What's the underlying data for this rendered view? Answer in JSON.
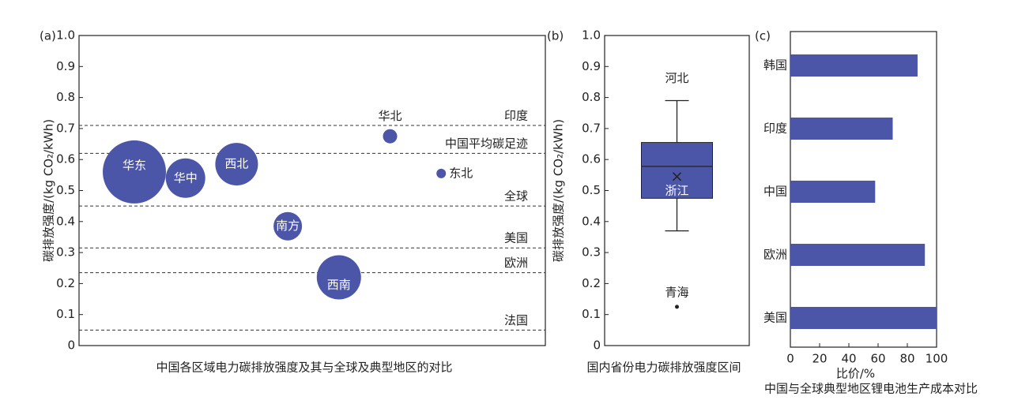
{
  "chart_data": [
    {
      "type": "bubble",
      "panel_label": "(a)",
      "categories": [
        "华东",
        "华中",
        "西北",
        "南方",
        "西南",
        "华北",
        "东北"
      ],
      "values": [
        0.56,
        0.54,
        0.585,
        0.385,
        0.22,
        0.675,
        0.555
      ],
      "sizes": [
        40,
        25,
        27,
        18,
        28,
        9,
        6
      ],
      "color": "#4b56a8",
      "ylim": [
        0,
        1
      ],
      "yticks": [
        0,
        0.1,
        0.2,
        0.3,
        0.4,
        0.5,
        0.6,
        0.7,
        0.8,
        0.9,
        {
          "value": 1,
          "label": "1.0"
        }
      ],
      "ylabel": "碳排放强度/(kg CO₂/kWh)",
      "reference_lines": [
        {
          "label": "印度",
          "value": 0.71
        },
        {
          "label": "中国平均碳足迹",
          "value": 0.62
        },
        {
          "label": "全球",
          "value": 0.45
        },
        {
          "label": "美国",
          "value": 0.315
        },
        {
          "label": "欧洲",
          "value": 0.235
        },
        {
          "label": "法国",
          "value": 0.05
        }
      ],
      "caption": "中国各区域电力碳排放强度及其与全球及典型地区的对比"
    },
    {
      "type": "box",
      "panel_label": "(b)",
      "color": "#4b56a8",
      "whisker_low": 0.37,
      "q1": 0.475,
      "median": 0.578,
      "q3": 0.655,
      "whisker_high": 0.79,
      "mean": 0.545,
      "outliers": [
        0.125
      ],
      "outlier_labels": [
        "青海"
      ],
      "high_label": "河北",
      "mean_label": "浙江",
      "ylim": [
        0,
        1
      ],
      "yticks": [
        0,
        0.1,
        0.2,
        0.3,
        0.4,
        0.5,
        0.6,
        0.7,
        0.8,
        0.9,
        {
          "value": 1,
          "label": "1.0"
        }
      ],
      "ylabel": "碳排放强度/(kg CO₂/kWh)",
      "caption": "国内省份电力碳排放强度区间"
    },
    {
      "type": "barh",
      "panel_label": "(c)",
      "color": "#4b56a8",
      "categories": [
        "韩国",
        "印度",
        "中国",
        "欧洲",
        "美国"
      ],
      "values": [
        87,
        70,
        58,
        92,
        100
      ],
      "xlim": [
        0,
        100
      ],
      "xticks": [
        0,
        20,
        40,
        60,
        80,
        100
      ],
      "xlabel": "比价/%",
      "caption": "中国与全球典型地区锂电池生产成本对比"
    }
  ]
}
